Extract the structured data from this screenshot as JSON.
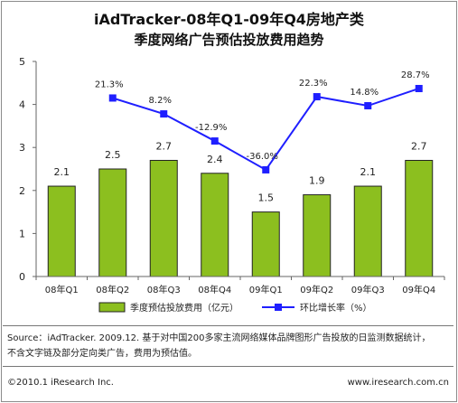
{
  "header": {
    "title": "iAdTracker-08年Q1-09年Q4房地产类",
    "subtitle": "季度网络广告预估投放费用趋势"
  },
  "chart_data": {
    "type": "bar",
    "categories": [
      "08年Q1",
      "08年Q2",
      "08年Q3",
      "08年Q4",
      "09年Q1",
      "09年Q2",
      "09年Q3",
      "09年Q4"
    ],
    "ylim": [
      0,
      5
    ],
    "yticks": [
      0,
      1,
      2,
      3,
      4,
      5
    ],
    "series": [
      {
        "name": "季度预估投放费用（亿元）",
        "type": "bar",
        "values": [
          2.1,
          2.5,
          2.7,
          2.4,
          1.5,
          1.9,
          2.1,
          2.7
        ],
        "labels": [
          "2.1",
          "2.5",
          "2.7",
          "2.4",
          "1.5",
          "1.9",
          "2.1",
          "2.7"
        ],
        "color": "#8CBF1F"
      },
      {
        "name": "环比增长率（%）",
        "type": "line",
        "values": [
          null,
          21.3,
          8.2,
          -12.9,
          -36.0,
          22.3,
          14.8,
          28.7
        ],
        "labels": [
          "",
          "21.3%",
          "8.2%",
          "-12.9%",
          "-36.0%",
          "22.3%",
          "14.8%",
          "28.7%"
        ],
        "plot_y": [
          null,
          4.15,
          3.78,
          3.15,
          2.48,
          4.18,
          3.97,
          4.37
        ],
        "color": "#1F1FFF"
      }
    ],
    "legend_position": "bottom"
  },
  "footer": {
    "source_line1": "Source：iAdTracker. 2009.12. 基于对中国200多家主流网络媒体品牌图形广告投放的日监测数据统计，",
    "source_line2": "不含文字链及部分定向类广告，费用为预估值。",
    "copyright": "©2010.1 iResearch Inc.",
    "website": "www.iresearch.com.cn"
  }
}
